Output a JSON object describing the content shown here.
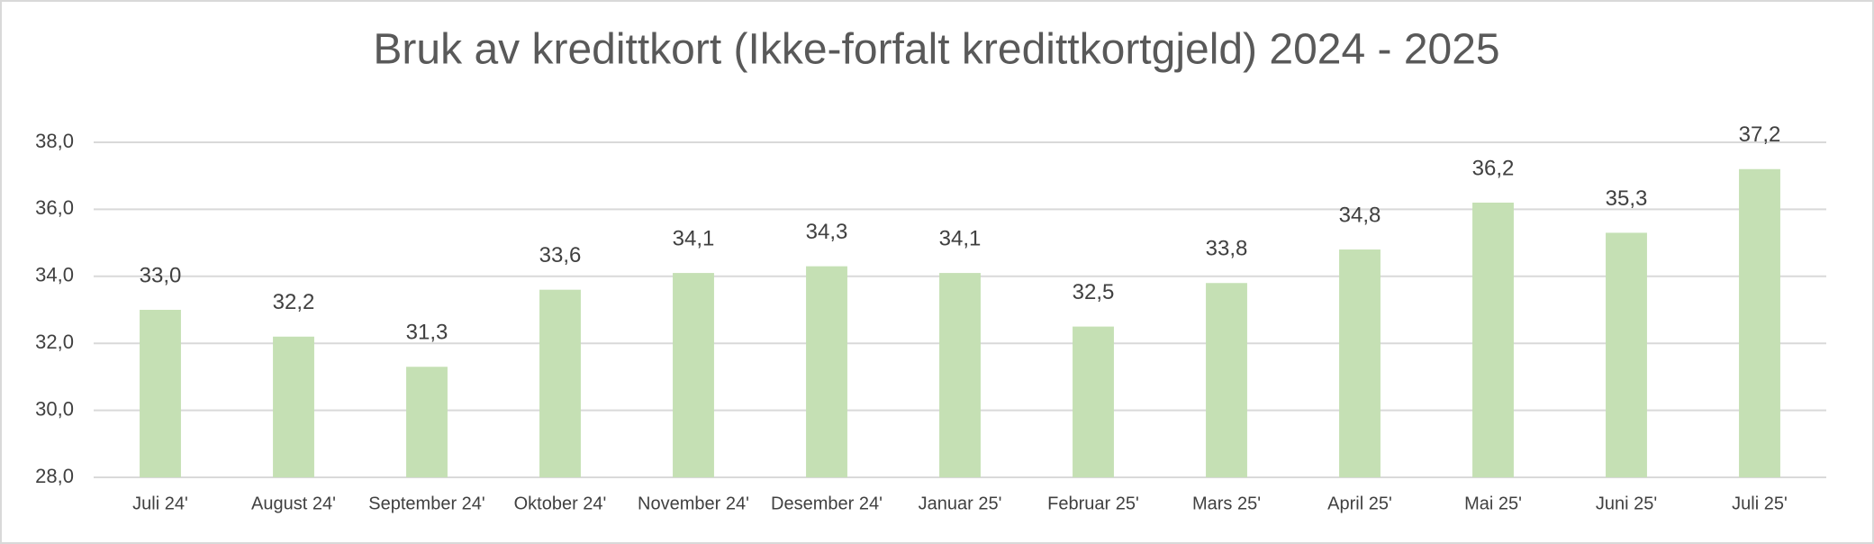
{
  "chart_data": {
    "type": "bar",
    "title": "Bruk av kredittkort (Ikke-forfalt kredittkortgjeld) 2024 - 2025",
    "categories": [
      "Juli 24'",
      "August 24'",
      "September 24'",
      "Oktober 24'",
      "November 24'",
      "Desember 24'",
      "Januar 25'",
      "Februar 25'",
      "Mars 25'",
      "April 25'",
      "Mai 25'",
      "Juni 25'",
      "Juli 25'"
    ],
    "values": [
      33.0,
      32.2,
      31.3,
      33.6,
      34.1,
      34.3,
      34.1,
      32.5,
      33.8,
      34.8,
      36.2,
      35.3,
      37.2
    ],
    "value_labels": [
      "33,0",
      "32,2",
      "31,3",
      "33,6",
      "34,1",
      "34,3",
      "34,1",
      "32,5",
      "33,8",
      "34,8",
      "36,2",
      "35,3",
      "37,2"
    ],
    "color": "#c5e0b4",
    "ylim": [
      28,
      38
    ],
    "yticks": [
      {
        "value": 28,
        "label": "28,0"
      },
      {
        "value": 30,
        "label": "30,0"
      },
      {
        "value": 32,
        "label": "32,0"
      },
      {
        "value": 34,
        "label": "34,0"
      },
      {
        "value": 36,
        "label": "36,0"
      },
      {
        "value": 38,
        "label": "38,0"
      }
    ],
    "grid": true
  }
}
